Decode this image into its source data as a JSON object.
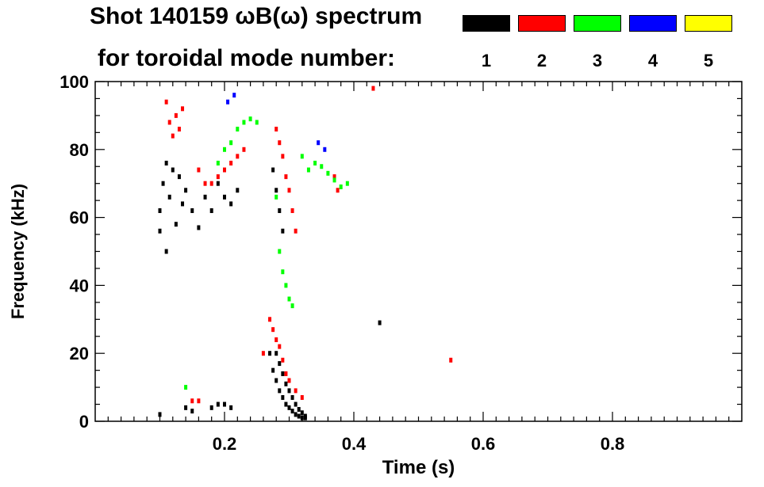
{
  "legend": {
    "title_line1": "Shot 140159 ωB(ω) spectrum",
    "title_line2": "for toroidal mode number:",
    "modes": [
      {
        "number": "1",
        "color": "#000000"
      },
      {
        "number": "2",
        "color": "#ff0000"
      },
      {
        "number": "3",
        "color": "#00ff00"
      },
      {
        "number": "4",
        "color": "#0000ff"
      },
      {
        "number": "5",
        "color": "#ffff00"
      }
    ]
  },
  "chart_data": {
    "type": "heatmap",
    "title": "Shot 140159 ωB(ω) spectrum",
    "xlabel": "Time (s)",
    "ylabel": "Frequency (kHz)",
    "xlim": [
      0.0,
      1.0
    ],
    "ylim": [
      0,
      100
    ],
    "x_ticks": [
      0.2,
      0.4,
      0.6,
      0.8
    ],
    "x_tick_labels": [
      "0.2",
      "0.4",
      "0.6",
      "0.8"
    ],
    "y_ticks": [
      0,
      20,
      40,
      60,
      80,
      100
    ],
    "y_tick_labels": [
      "0",
      "20",
      "40",
      "60",
      "80",
      "100"
    ],
    "series": [
      {
        "name": "n=1",
        "color": "#000000",
        "points": [
          [
            0.1,
            56
          ],
          [
            0.1,
            62
          ],
          [
            0.105,
            70
          ],
          [
            0.11,
            76
          ],
          [
            0.11,
            50
          ],
          [
            0.115,
            66
          ],
          [
            0.12,
            74
          ],
          [
            0.125,
            58
          ],
          [
            0.13,
            72
          ],
          [
            0.135,
            64
          ],
          [
            0.14,
            68
          ],
          [
            0.15,
            62
          ],
          [
            0.16,
            57
          ],
          [
            0.17,
            66
          ],
          [
            0.18,
            62
          ],
          [
            0.19,
            70
          ],
          [
            0.2,
            66
          ],
          [
            0.21,
            64
          ],
          [
            0.22,
            68
          ],
          [
            0.275,
            74
          ],
          [
            0.28,
            68
          ],
          [
            0.285,
            62
          ],
          [
            0.29,
            56
          ],
          [
            0.27,
            20
          ],
          [
            0.275,
            15
          ],
          [
            0.28,
            12
          ],
          [
            0.285,
            9
          ],
          [
            0.29,
            7
          ],
          [
            0.295,
            5
          ],
          [
            0.3,
            4
          ],
          [
            0.305,
            3
          ],
          [
            0.31,
            2
          ],
          [
            0.315,
            1.5
          ],
          [
            0.32,
            1
          ],
          [
            0.325,
            1
          ],
          [
            0.28,
            20
          ],
          [
            0.285,
            17
          ],
          [
            0.29,
            14
          ],
          [
            0.295,
            11
          ],
          [
            0.3,
            9
          ],
          [
            0.305,
            7
          ],
          [
            0.31,
            5
          ],
          [
            0.315,
            3.5
          ],
          [
            0.32,
            2.5
          ],
          [
            0.325,
            1.5
          ],
          [
            0.1,
            2
          ],
          [
            0.14,
            4
          ],
          [
            0.15,
            3
          ],
          [
            0.18,
            4
          ],
          [
            0.19,
            5
          ],
          [
            0.2,
            5
          ],
          [
            0.21,
            4
          ],
          [
            0.44,
            29
          ]
        ]
      },
      {
        "name": "n=2",
        "color": "#ff0000",
        "points": [
          [
            0.11,
            94
          ],
          [
            0.115,
            88
          ],
          [
            0.12,
            84
          ],
          [
            0.125,
            90
          ],
          [
            0.13,
            86
          ],
          [
            0.135,
            92
          ],
          [
            0.16,
            74
          ],
          [
            0.17,
            70
          ],
          [
            0.18,
            70
          ],
          [
            0.19,
            72
          ],
          [
            0.2,
            74
          ],
          [
            0.21,
            76
          ],
          [
            0.22,
            78
          ],
          [
            0.23,
            80
          ],
          [
            0.28,
            86
          ],
          [
            0.285,
            82
          ],
          [
            0.29,
            78
          ],
          [
            0.295,
            72
          ],
          [
            0.3,
            68
          ],
          [
            0.305,
            62
          ],
          [
            0.31,
            56
          ],
          [
            0.27,
            30
          ],
          [
            0.275,
            27
          ],
          [
            0.28,
            24
          ],
          [
            0.285,
            22
          ],
          [
            0.29,
            18
          ],
          [
            0.295,
            14
          ],
          [
            0.3,
            12
          ],
          [
            0.31,
            9
          ],
          [
            0.32,
            7
          ],
          [
            0.37,
            72
          ],
          [
            0.375,
            68
          ],
          [
            0.43,
            98
          ],
          [
            0.55,
            18
          ],
          [
            0.15,
            6
          ],
          [
            0.16,
            6
          ],
          [
            0.26,
            20
          ]
        ]
      },
      {
        "name": "n=3",
        "color": "#00ff00",
        "points": [
          [
            0.19,
            76
          ],
          [
            0.2,
            80
          ],
          [
            0.21,
            82
          ],
          [
            0.22,
            86
          ],
          [
            0.23,
            88
          ],
          [
            0.24,
            89
          ],
          [
            0.25,
            88
          ],
          [
            0.28,
            66
          ],
          [
            0.285,
            50
          ],
          [
            0.29,
            44
          ],
          [
            0.295,
            40
          ],
          [
            0.3,
            36
          ],
          [
            0.305,
            34
          ],
          [
            0.32,
            78
          ],
          [
            0.33,
            74
          ],
          [
            0.34,
            76
          ],
          [
            0.35,
            75
          ],
          [
            0.36,
            73
          ],
          [
            0.37,
            71
          ],
          [
            0.38,
            69
          ],
          [
            0.39,
            70
          ],
          [
            0.14,
            10
          ]
        ]
      },
      {
        "name": "n=4",
        "color": "#0000ff",
        "points": [
          [
            0.205,
            94
          ],
          [
            0.215,
            96
          ],
          [
            0.345,
            82
          ],
          [
            0.355,
            80
          ]
        ]
      },
      {
        "name": "n=5",
        "color": "#ffff00",
        "points": []
      }
    ]
  }
}
